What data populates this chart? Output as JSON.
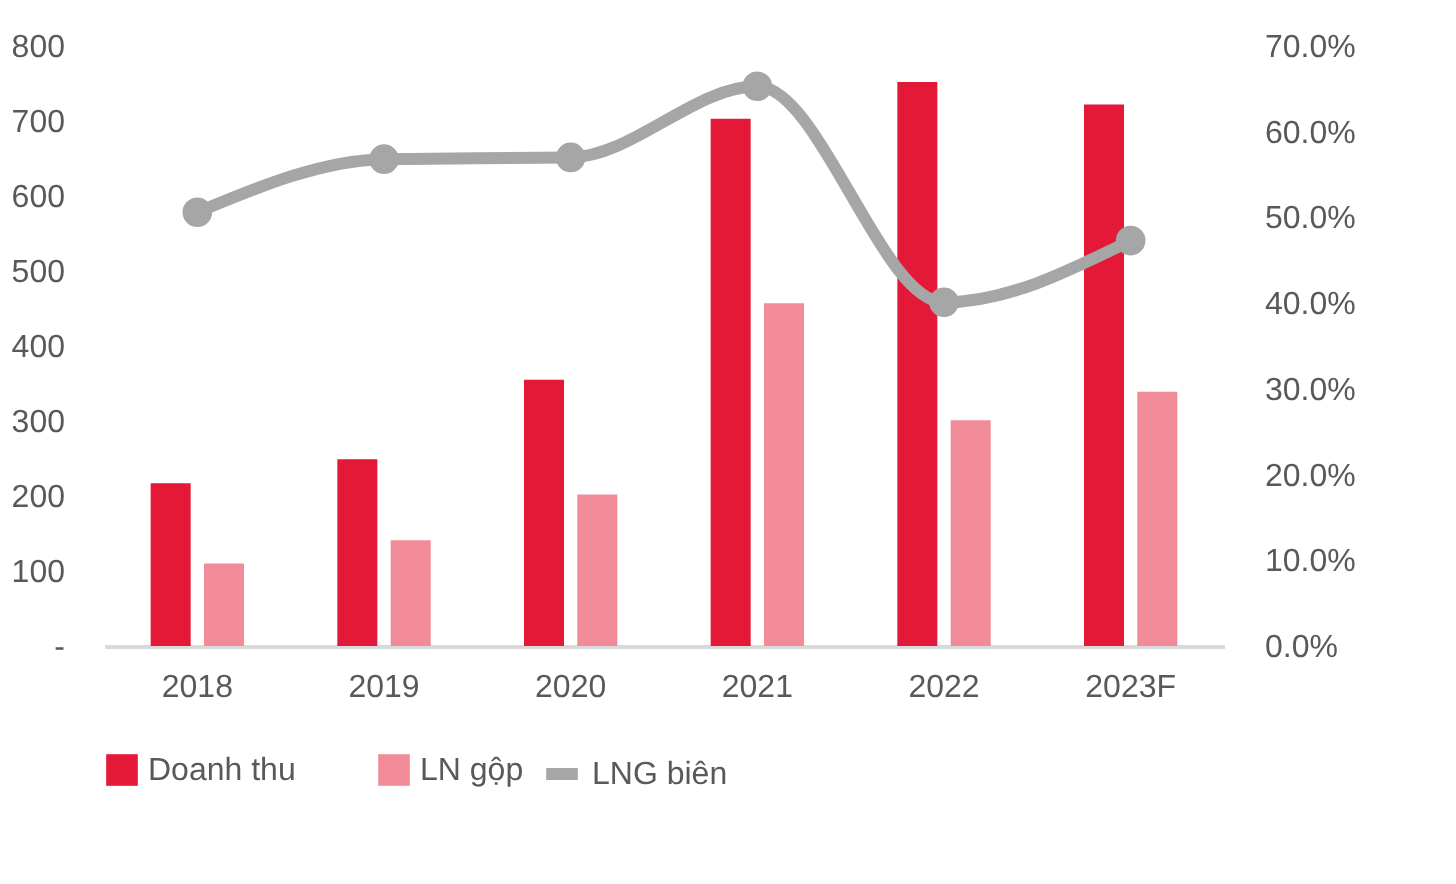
{
  "chart_data": {
    "type": "bar",
    "categories": [
      "2018",
      "2019",
      "2020",
      "2021",
      "2022",
      "2023F"
    ],
    "series": [
      {
        "name": "Doanh thu",
        "color": "#e31937",
        "values": [
          217,
          249,
          355,
          703,
          752,
          722
        ]
      },
      {
        "name": "LN gộp",
        "color": "#f28b98",
        "values": [
          110,
          141,
          202,
          457,
          301,
          339
        ]
      },
      {
        "name": "LNG biên",
        "color": "#a6a6a6",
        "type": "line",
        "axis": "y2",
        "marker": "circle",
        "values": [
          50.6,
          56.8,
          57.0,
          65.3,
          40.1,
          47.3
        ]
      }
    ],
    "ylim": [
      0,
      800
    ],
    "yticks": [
      {
        "value": 0,
        "label": "-"
      },
      100,
      200,
      300,
      400,
      500,
      600,
      700,
      800
    ],
    "y2lim": [
      0,
      70
    ],
    "y2ticks": [
      {
        "value": 0,
        "label": "0.0%"
      },
      {
        "value": 10,
        "label": "10.0%"
      },
      {
        "value": 20,
        "label": "20.0%"
      },
      {
        "value": 30,
        "label": "30.0%"
      },
      {
        "value": 40,
        "label": "40.0%"
      },
      {
        "value": 50,
        "label": "50.0%"
      },
      {
        "value": 60,
        "label": "60.0%"
      },
      {
        "value": 70,
        "label": "70.0%"
      }
    ],
    "grid": false,
    "legend": "bottom"
  }
}
